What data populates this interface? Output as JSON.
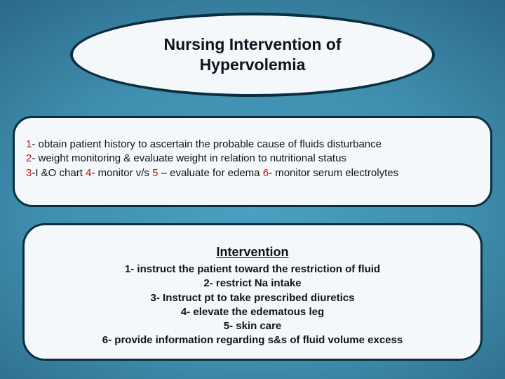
{
  "colors": {
    "bg_center": "#4aa0c0",
    "bg_mid": "#2a6584",
    "bg_edge": "#062435",
    "panel_fill": "#f5f8fa",
    "panel_border": "#0a2e3e",
    "text": "#0a1520",
    "accent_number": "#c01818"
  },
  "title": {
    "line1": "Nursing Intervention of",
    "line2": "Hypervolemia",
    "fontsize": 23,
    "fontweight": "bold"
  },
  "assessment": {
    "fontsize": 15,
    "items": [
      {
        "num": "1",
        "sep": "-",
        "text": " obtain patient history to ascertain the probable cause of fluids disturbance"
      },
      {
        "num": "2",
        "sep": "-",
        "text": " weight monitoring  & evaluate weight in relation to nutritional status"
      },
      {
        "num": "3",
        "sep": "-",
        "text": "I &O chart "
      },
      {
        "num": "4",
        "sep": "-",
        "text": " monitor v/s "
      },
      {
        "num": "5",
        "sep": " –",
        "text": " evaluate for edema   "
      },
      {
        "num": "6",
        "sep": "-",
        "text": " monitor serum electrolytes"
      }
    ]
  },
  "intervention": {
    "heading": "Intervention",
    "heading_fontsize": 18,
    "body_fontsize": 15,
    "lines": [
      "1- instruct the patient toward the restriction of fluid",
      "2- restrict  Na  intake",
      "3- Instruct pt to take prescribed diuretics",
      "4- elevate the edematous leg",
      "5- skin care",
      "6- provide information regarding s&s of fluid volume excess"
    ]
  }
}
